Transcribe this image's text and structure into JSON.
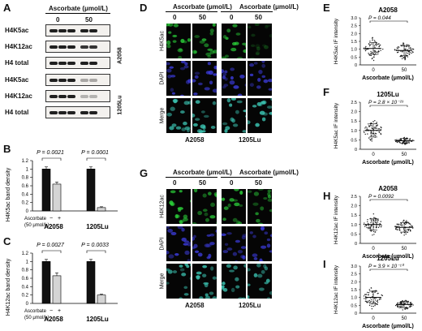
{
  "panels": {
    "A": "A",
    "B": "B",
    "C": "C",
    "D": "D",
    "E": "E",
    "F": "F",
    "G": "G",
    "H": "H",
    "I": "I"
  },
  "western": {
    "header": "Ascorbate (μmol/L)",
    "doses": [
      "0",
      "50"
    ],
    "a2058": {
      "cell_line": "A2058",
      "rows": [
        "H4K5ac",
        "H4K12ac",
        "H4 total"
      ]
    },
    "lu1205": {
      "cell_line": "1205Lu",
      "rows": [
        "H4K5ac",
        "H4K12ac",
        "H4 total"
      ]
    }
  },
  "bar_b": {
    "ylabel": "H4K5ac band density",
    "groups": [
      "A2058",
      "1205Lu"
    ],
    "pvals": [
      "P = 0.0021",
      "P = 0.0001"
    ],
    "legend_label": "Ascorbate",
    "legend_unit": "(50 μmol/L)",
    "signs": [
      "−",
      "+"
    ]
  },
  "bar_c": {
    "ylabel": "H4K12ac band density",
    "groups": [
      "A2058",
      "1205Lu"
    ],
    "pvals": [
      "P = 0.0027",
      "P = 0.0033"
    ],
    "legend_label": "Ascorbate",
    "legend_unit": "(50 μmol/L)",
    "signs": [
      "−",
      "+"
    ]
  },
  "if_d": {
    "header": "Ascorbate (μmol/L)",
    "doses": [
      "0",
      "50"
    ],
    "rows": [
      "H4K5ac",
      "DAPI",
      "Merge"
    ],
    "cells": [
      "A2058",
      "1205Lu"
    ]
  },
  "if_g": {
    "header": "Ascorbate (μmol/L)",
    "doses": [
      "0",
      "50"
    ],
    "rows": [
      "H4K12ac",
      "DAPI",
      "Merge"
    ],
    "cells": [
      "A2058",
      "1205Lu"
    ]
  },
  "scatter_e": {
    "title": "A2058",
    "p": "P = 0.044",
    "ylabel": "H4K5ac IF intensity",
    "xlabel": "Ascorbate (μmol/L)"
  },
  "scatter_f": {
    "title": "1205Lu",
    "p": "P = 2.8 × 10⁻²³",
    "ylabel": "H4K5ac IF intensity",
    "xlabel": "Ascorbate (μmol/L)"
  },
  "scatter_h": {
    "title": "A2058",
    "p": "P = 0.0092",
    "ylabel": "H4K12ac IF intensity",
    "xlabel": "Ascorbate (μmol/L)"
  },
  "scatter_i": {
    "title": "1205Lu",
    "p": "P = 3.9 × 10⁻¹⁰",
    "ylabel": "H4K12ac IF intensity",
    "xlabel": "Ascorbate (μmol/L)"
  },
  "colors": {
    "green": "#2bd23a",
    "blue": "#3b3bd8",
    "teal": "#3cc6b4",
    "bar_black": "#111111",
    "bar_gray": "#d4d4d4"
  },
  "chart_data": [
    {
      "id": "B",
      "type": "bar",
      "categories": [
        "A2058 −",
        "A2058 +",
        "1205Lu −",
        "1205Lu +"
      ],
      "values": [
        1.0,
        0.64,
        1.0,
        0.08
      ],
      "errors": [
        0.05,
        0.05,
        0.05,
        0.02
      ],
      "ylim": [
        0,
        1.2
      ],
      "yticks": [
        0,
        0.2,
        0.4,
        0.6,
        0.8,
        1.0,
        1.2
      ],
      "ytick_labels": [
        "0",
        "0.2",
        "0.4",
        "0.6",
        "0.8",
        "1",
        "1.2"
      ]
    },
    {
      "id": "C",
      "type": "bar",
      "categories": [
        "A2058 −",
        "A2058 +",
        "1205Lu −",
        "1205Lu +"
      ],
      "values": [
        1.0,
        0.66,
        1.0,
        0.2
      ],
      "errors": [
        0.05,
        0.07,
        0.05,
        0.02
      ],
      "ylim": [
        0,
        1.2
      ],
      "yticks": [
        0,
        0.2,
        0.4,
        0.6,
        0.8,
        1.0,
        1.2
      ],
      "ytick_labels": [
        "0",
        "0.2",
        "0.4",
        "0.6",
        "0.8",
        "1",
        "1.2"
      ]
    },
    {
      "id": "E",
      "type": "scatter",
      "categories": [
        "0",
        "50"
      ],
      "mean": [
        1.05,
        0.92
      ],
      "sd": [
        0.38,
        0.32
      ],
      "ylim": [
        0,
        3.0
      ],
      "yticks": [
        0,
        0.5,
        1.0,
        1.5,
        2.0,
        2.5,
        3.0
      ],
      "ytick_labels": [
        "0",
        "0.5",
        "1.0",
        "1.5",
        "2.0",
        "2.5",
        "3.0"
      ]
    },
    {
      "id": "F",
      "type": "scatter",
      "categories": [
        "0",
        "50"
      ],
      "mean": [
        1.0,
        0.45
      ],
      "sd": [
        0.35,
        0.12
      ],
      "ylim": [
        0,
        2.5
      ],
      "yticks": [
        0,
        0.5,
        1.0,
        1.5,
        2.0,
        2.5
      ],
      "ytick_labels": [
        "0",
        "0.5",
        "1.0",
        "1.5",
        "2.0",
        "2.5"
      ]
    },
    {
      "id": "H",
      "type": "scatter",
      "categories": [
        "0",
        "50"
      ],
      "mean": [
        1.0,
        0.85
      ],
      "sd": [
        0.3,
        0.25
      ],
      "ylim": [
        0,
        2.5
      ],
      "yticks": [
        0,
        0.5,
        1.0,
        1.5,
        2.0,
        2.5
      ],
      "ytick_labels": [
        "0",
        "0.5",
        "1.0",
        "1.5",
        "2.0",
        "2.5"
      ]
    },
    {
      "id": "I",
      "type": "scatter",
      "categories": [
        "0",
        "50"
      ],
      "mean": [
        1.0,
        0.55
      ],
      "sd": [
        0.4,
        0.2
      ],
      "ylim": [
        0,
        3.0
      ],
      "yticks": [
        0,
        0.5,
        1.0,
        1.5,
        2.0,
        2.5,
        3.0
      ],
      "ytick_labels": [
        "0",
        "0.5",
        "1.0",
        "1.5",
        "2.0",
        "2.5",
        "3.0"
      ]
    }
  ]
}
